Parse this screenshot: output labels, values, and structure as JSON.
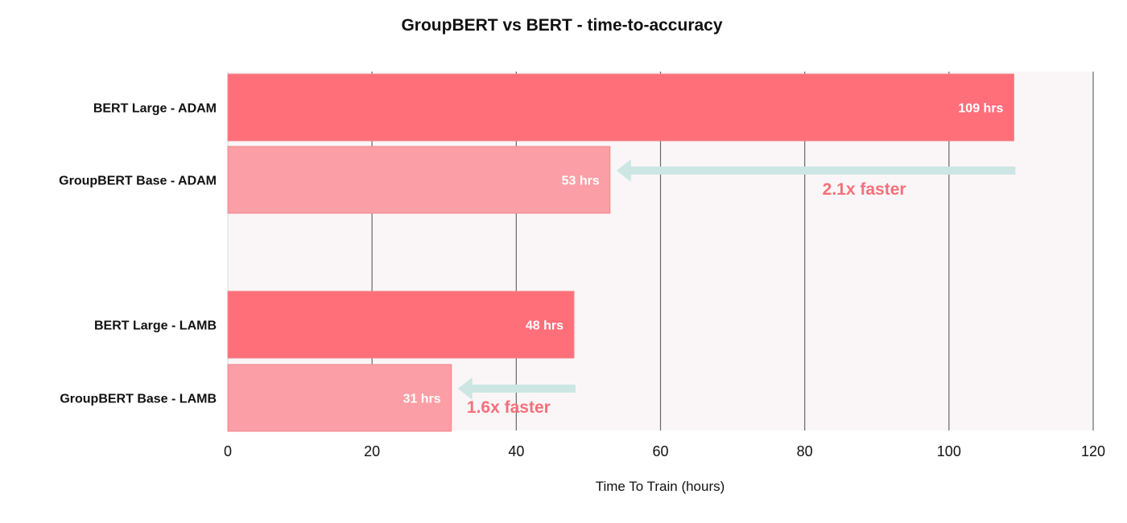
{
  "chart_data": {
    "type": "bar",
    "orientation": "horizontal",
    "title": "GroupBERT vs BERT  - time-to-accuracy",
    "xlabel": "Time To Train (hours)",
    "ylabel": "",
    "xlim": [
      0,
      120
    ],
    "x_ticks": [
      0,
      20,
      40,
      60,
      80,
      100,
      120
    ],
    "grid": "vertical",
    "categories": [
      "BERT Large - ADAM",
      "GroupBERT Base  - ADAM",
      "BERT Large - LAMB",
      "GroupBERT Base  - LAMB"
    ],
    "values": [
      109,
      53,
      48,
      31
    ],
    "data_labels": [
      "109 hrs",
      "53 hrs",
      "48 hrs",
      "31 hrs"
    ],
    "bar_colors": [
      "#ff6f79",
      "#fc9ea5",
      "#ff6f79",
      "#fc9ea5"
    ],
    "annotations": [
      {
        "text": "2.1x faster",
        "arrow_from": 109,
        "arrow_to": 53
      },
      {
        "text": "1.6x faster",
        "arrow_from": 48,
        "arrow_to": 31
      }
    ],
    "colors": {
      "plot_background": "#faf6f7",
      "grid": "#5f6a6a",
      "arrow": "#cce6e4",
      "annotation_text": "#f4707a"
    }
  }
}
